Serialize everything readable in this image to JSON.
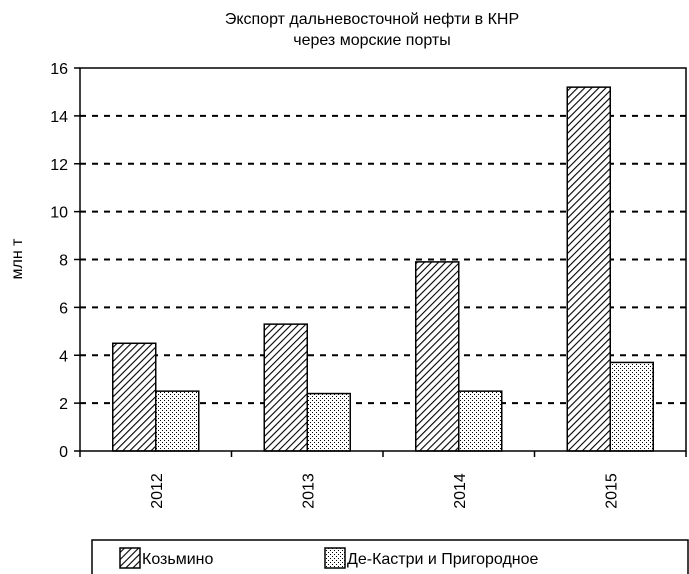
{
  "chart_data": {
    "type": "bar",
    "title": "Экспорт дальневосточной нефти в КНР",
    "subtitle": "через морские порты",
    "ylabel": "млн т",
    "xlabel": "",
    "ylim": [
      0,
      16
    ],
    "yticks": [
      "0",
      "2",
      "4",
      "6",
      "8",
      "10",
      "12",
      "14",
      "16"
    ],
    "grid": true,
    "legend_position": "bottom",
    "categories": [
      "2012",
      "2013",
      "2014",
      "2015"
    ],
    "series": [
      {
        "name": "Козьмино",
        "values": [
          4.5,
          5.3,
          7.9,
          15.2
        ],
        "pattern": "diagonal-hatch"
      },
      {
        "name": "Де-Кастри и Пригородное",
        "values": [
          2.5,
          2.4,
          2.5,
          3.7
        ],
        "pattern": "dots"
      }
    ]
  }
}
